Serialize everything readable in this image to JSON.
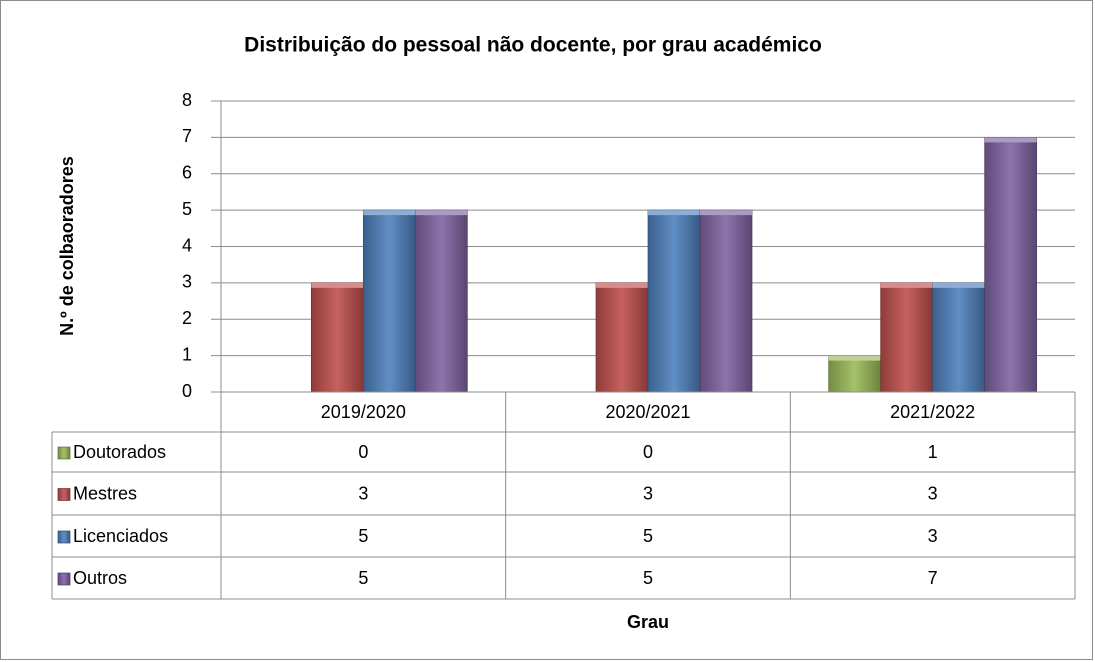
{
  "chart_data": {
    "type": "bar",
    "title": "Distribuição do pessoal não docente, por grau académico",
    "y_label": "N.º de colbaoradores",
    "x_label": "Grau",
    "categories": [
      "2019/2020",
      "2020/2021",
      "2021/2022"
    ],
    "series": [
      {
        "name": "Doutorados",
        "color": "#9bbb59",
        "values": [
          0,
          0,
          1
        ]
      },
      {
        "name": "Mestres",
        "color": "#c0504d",
        "values": [
          3,
          3,
          3
        ]
      },
      {
        "name": "Licenciados",
        "color": "#4f81bd",
        "values": [
          5,
          5,
          3
        ]
      },
      {
        "name": "Outros",
        "color": "#8064a2",
        "values": [
          5,
          5,
          7
        ]
      }
    ],
    "ylim": [
      0,
      8
    ],
    "yticks": [
      0,
      1,
      2,
      3,
      4,
      5,
      6,
      7,
      8
    ],
    "grid": true
  }
}
